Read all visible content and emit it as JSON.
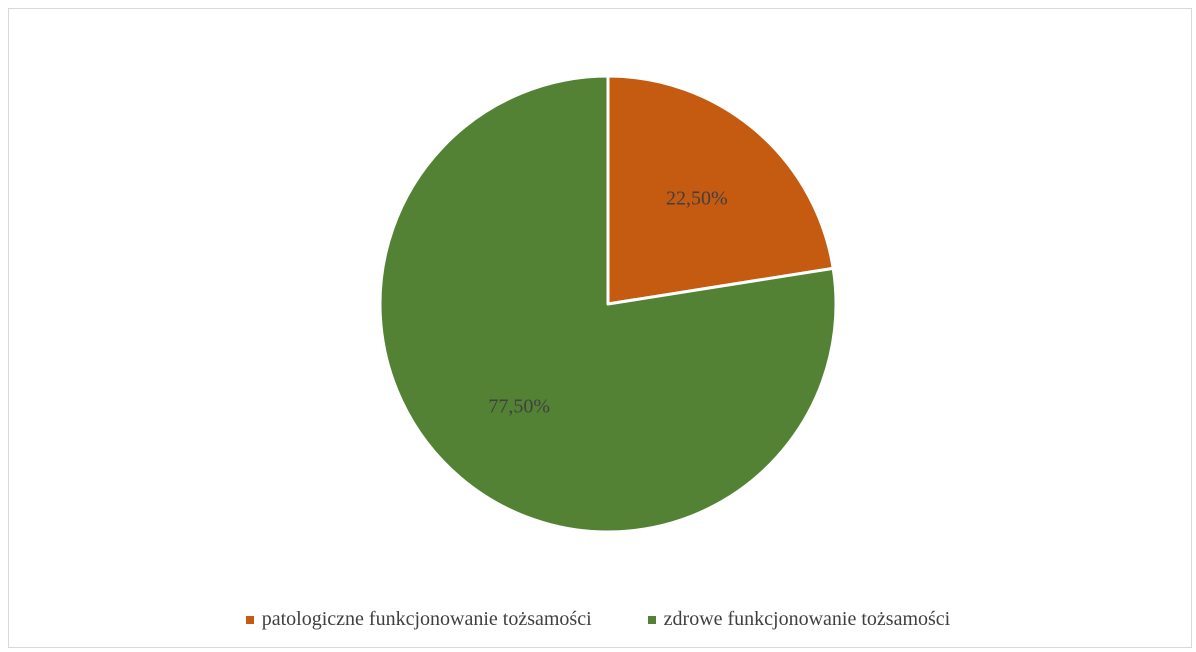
{
  "chart_data": {
    "type": "pie",
    "categories": [
      "patologiczne funkcjonowanie tożsamości",
      "zdrowe funkcjonowanie tożsamości"
    ],
    "values": [
      22.5,
      77.5
    ],
    "data_labels": [
      "22,50%",
      "77,50%"
    ],
    "colors": [
      "#c55a11",
      "#548235"
    ],
    "legend_position": "bottom",
    "start_angle": "12 o'clock, clockwise"
  },
  "legend": {
    "items": [
      {
        "label": "patologiczne funkcjonowanie tożsamości",
        "color": "#c55a11"
      },
      {
        "label": "zdrowe funkcjonowanie tożsamości",
        "color": "#548235"
      }
    ]
  }
}
